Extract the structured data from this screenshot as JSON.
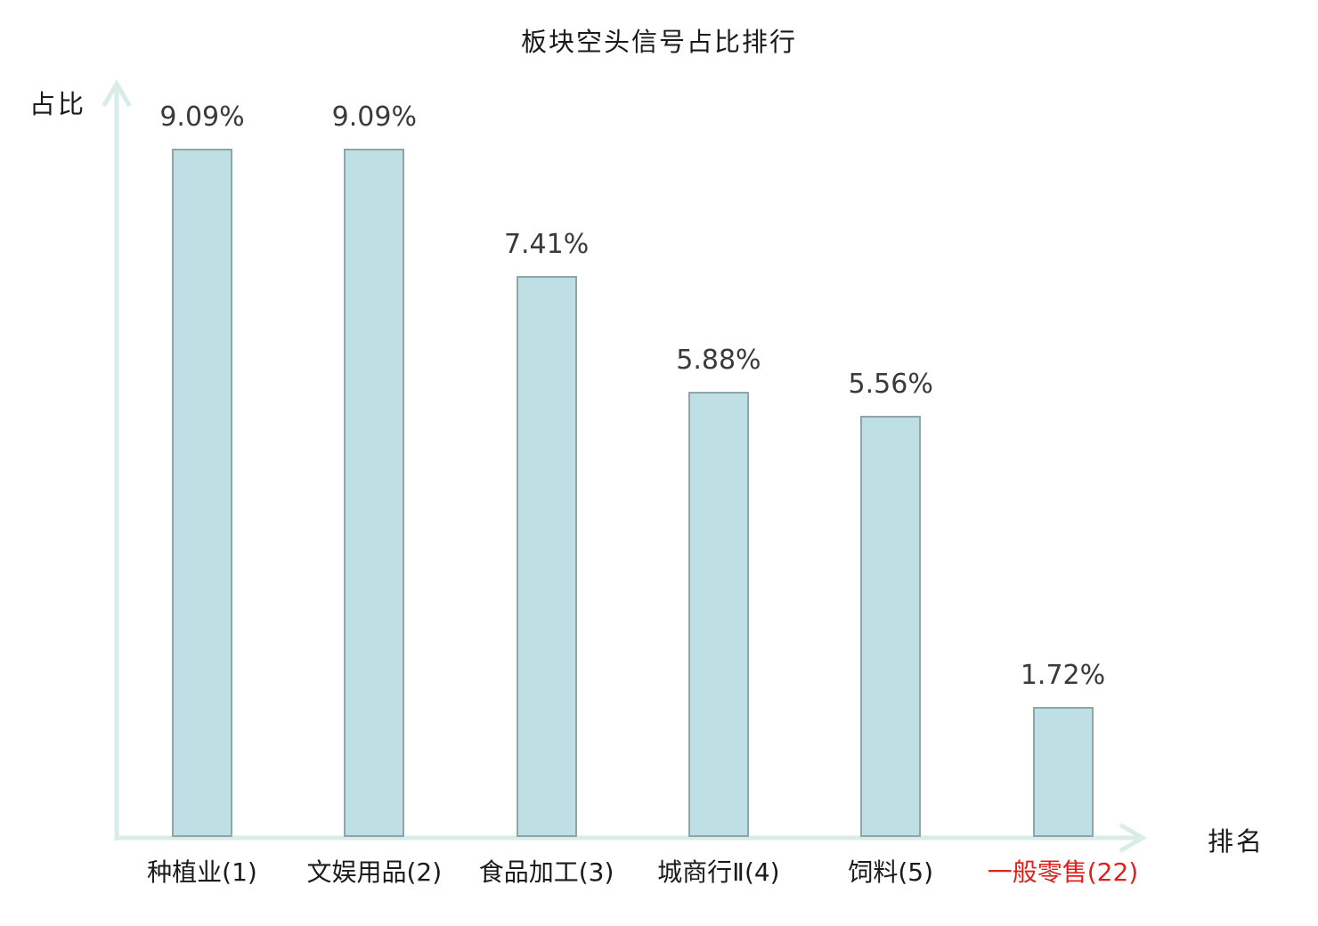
{
  "chart_data": {
    "type": "bar",
    "title": "板块空头信号占比排行",
    "xlabel": "排名",
    "ylabel": "占比",
    "categories": [
      "种植业(1)",
      "文娱用品(2)",
      "食品加工(3)",
      "城商行Ⅱ(4)",
      "饲料(5)",
      "一般零售(22)"
    ],
    "values": [
      9.09,
      9.09,
      7.41,
      5.88,
      5.56,
      1.72
    ],
    "value_labels": [
      "9.09%",
      "9.09%",
      "7.41%",
      "5.88%",
      "5.56%",
      "1.72%"
    ],
    "highlight_index": 5,
    "ylim": [
      0,
      10.6
    ],
    "grid": false,
    "legend": null,
    "colors": {
      "bar_fill": "#bedfe3",
      "bar_border": "#8fa6a9",
      "axis": "#d9ece8",
      "value_label": "#3a3a3a",
      "category_label": "#1a1a1a",
      "highlight": "#e01f1f",
      "title": "#1a1a1a",
      "background": "#ffffff"
    }
  }
}
